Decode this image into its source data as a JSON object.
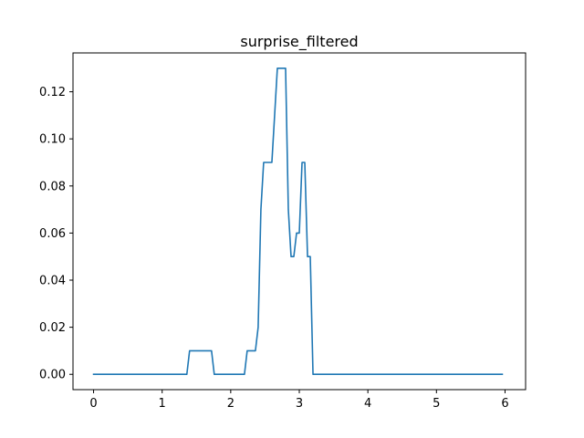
{
  "chart_data": {
    "type": "line",
    "title": "surprise_filtered",
    "xlabel": "",
    "ylabel": "",
    "xlim": [
      -0.3,
      6.3
    ],
    "ylim": [
      -0.0065,
      0.1365
    ],
    "xticks": [
      0,
      1,
      2,
      3,
      4,
      5,
      6
    ],
    "xtick_labels": [
      "0",
      "1",
      "2",
      "3",
      "4",
      "5",
      "6"
    ],
    "yticks": [
      0.0,
      0.02,
      0.04,
      0.06,
      0.08,
      0.1,
      0.12
    ],
    "ytick_labels": [
      "0.00",
      "0.02",
      "0.04",
      "0.06",
      "0.08",
      "0.10",
      "0.12"
    ],
    "grid": false,
    "series": [
      {
        "color": "#1f77b4",
        "x": [
          0.0,
          1.36,
          1.4,
          1.72,
          1.76,
          2.2,
          2.24,
          2.36,
          2.4,
          2.44,
          2.48,
          2.52,
          2.6,
          2.64,
          2.68,
          2.8,
          2.84,
          2.88,
          2.92,
          2.96,
          3.0,
          3.04,
          3.08,
          3.12,
          3.16,
          3.2,
          3.24,
          5.96
        ],
        "y": [
          0.0,
          0.0,
          0.01,
          0.01,
          0.0,
          0.0,
          0.01,
          0.01,
          0.02,
          0.07,
          0.09,
          0.09,
          0.09,
          0.11,
          0.13,
          0.13,
          0.07,
          0.05,
          0.05,
          0.06,
          0.06,
          0.09,
          0.09,
          0.05,
          0.05,
          0.0,
          0.0,
          0.0
        ]
      }
    ]
  }
}
